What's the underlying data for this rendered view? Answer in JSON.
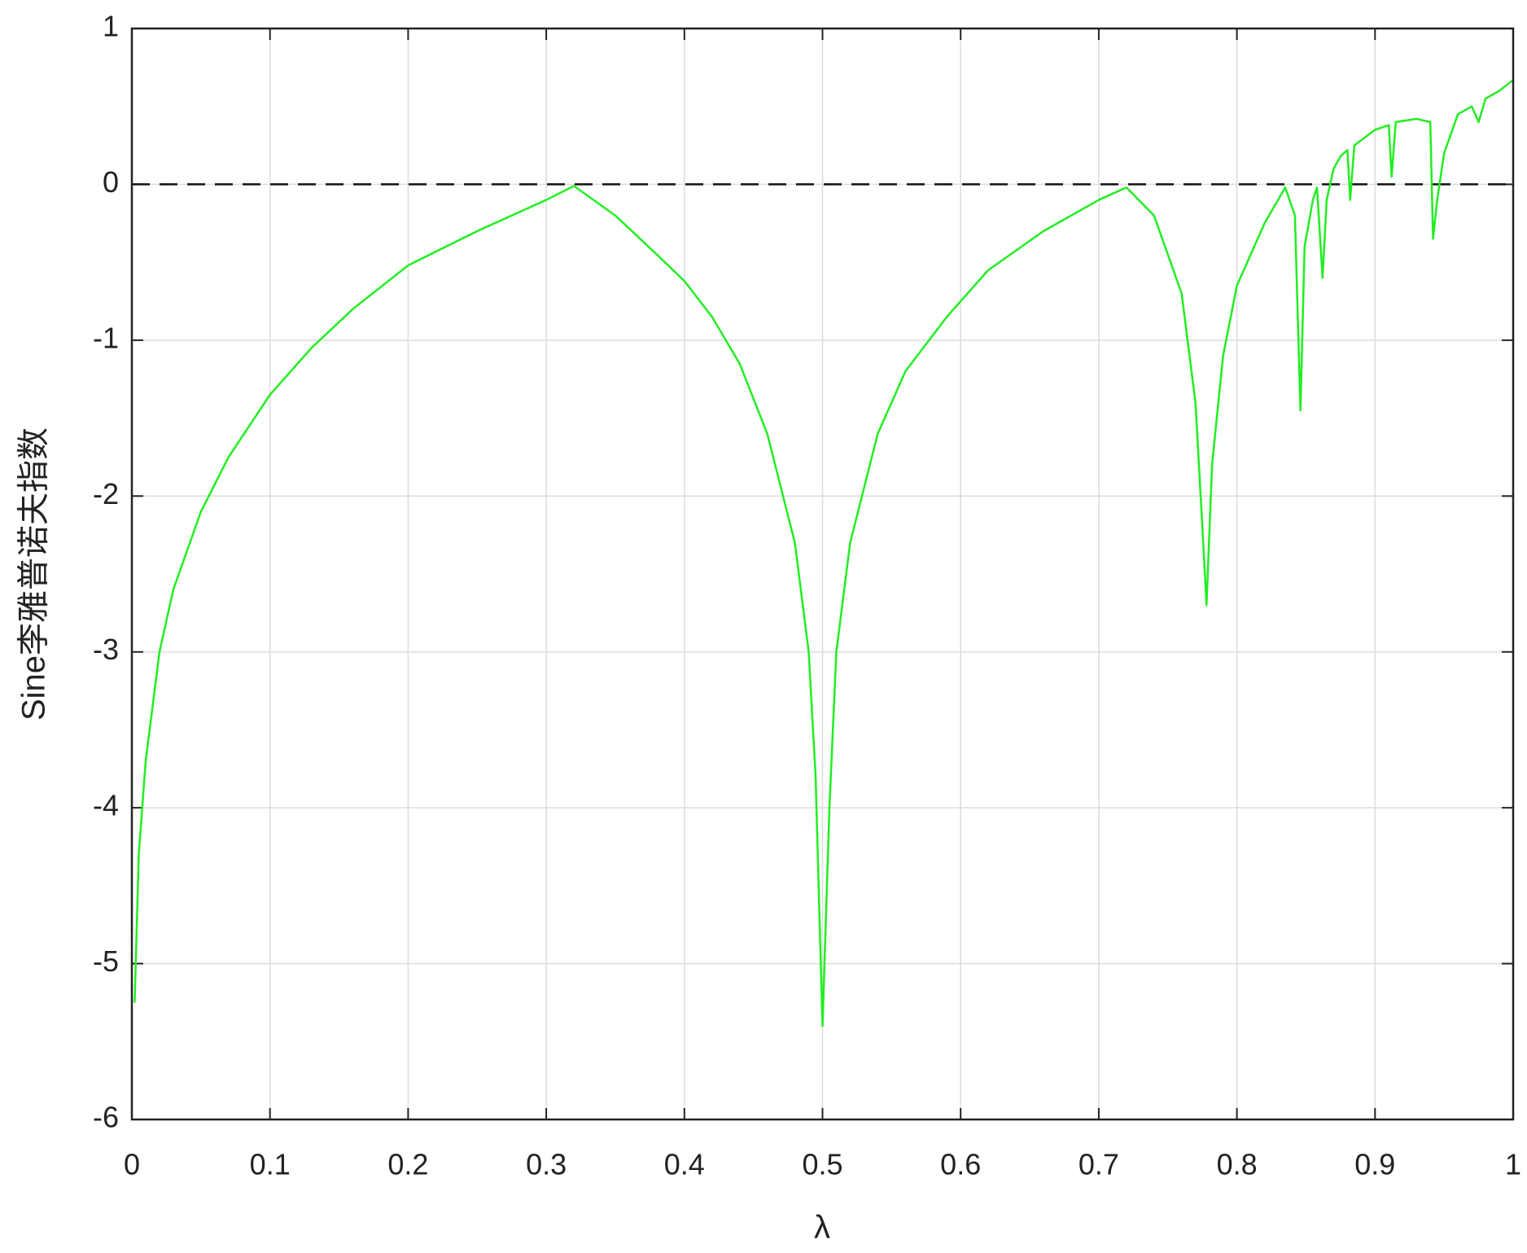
{
  "chart_data": {
    "type": "line",
    "xlabel": "λ",
    "ylabel": "Sine李雅普诺夫指数",
    "x": [
      0.002,
      0.005,
      0.01,
      0.02,
      0.03,
      0.05,
      0.07,
      0.1,
      0.13,
      0.16,
      0.2,
      0.25,
      0.3,
      0.32,
      0.35,
      0.38,
      0.4,
      0.42,
      0.44,
      0.46,
      0.48,
      0.49,
      0.495,
      0.5,
      0.505,
      0.51,
      0.52,
      0.54,
      0.56,
      0.59,
      0.62,
      0.66,
      0.7,
      0.72,
      0.74,
      0.76,
      0.77,
      0.775,
      0.778,
      0.782,
      0.79,
      0.8,
      0.82,
      0.835,
      0.842,
      0.846,
      0.849,
      0.855,
      0.858,
      0.862,
      0.865,
      0.87,
      0.875,
      0.88,
      0.882,
      0.885,
      0.9,
      0.91,
      0.912,
      0.915,
      0.93,
      0.94,
      0.942,
      0.945,
      0.95,
      0.96,
      0.97,
      0.975,
      0.98,
      0.99,
      1.0
    ],
    "series": [
      {
        "color": "#22ee22",
        "values": [
          -5.25,
          -4.3,
          -3.7,
          -3.0,
          -2.6,
          -2.1,
          -1.75,
          -1.35,
          -1.05,
          -0.8,
          -0.52,
          -0.3,
          -0.1,
          -0.01,
          -0.2,
          -0.45,
          -0.62,
          -0.85,
          -1.15,
          -1.6,
          -2.3,
          -3.0,
          -3.8,
          -5.4,
          -4.0,
          -3.0,
          -2.3,
          -1.6,
          -1.2,
          -0.85,
          -0.55,
          -0.3,
          -0.1,
          -0.02,
          -0.2,
          -0.7,
          -1.4,
          -2.2,
          -2.7,
          -1.8,
          -1.1,
          -0.65,
          -0.25,
          -0.02,
          -0.2,
          -1.45,
          -0.4,
          -0.1,
          -0.02,
          -0.6,
          -0.1,
          0.1,
          0.18,
          0.22,
          -0.1,
          0.25,
          0.35,
          0.38,
          0.05,
          0.4,
          0.42,
          0.4,
          -0.35,
          -0.1,
          0.2,
          0.45,
          0.5,
          0.4,
          0.55,
          0.6,
          0.67
        ]
      }
    ],
    "xlim": [
      0,
      1
    ],
    "ylim": [
      -6,
      1
    ],
    "xticks": [
      0,
      0.1,
      0.2,
      0.3,
      0.4,
      0.5,
      0.6,
      0.7,
      0.8,
      0.9,
      1
    ],
    "yticks": [
      -6,
      -5,
      -4,
      -3,
      -2,
      -1,
      0,
      1
    ],
    "hlines": [
      0
    ],
    "grid": true
  }
}
